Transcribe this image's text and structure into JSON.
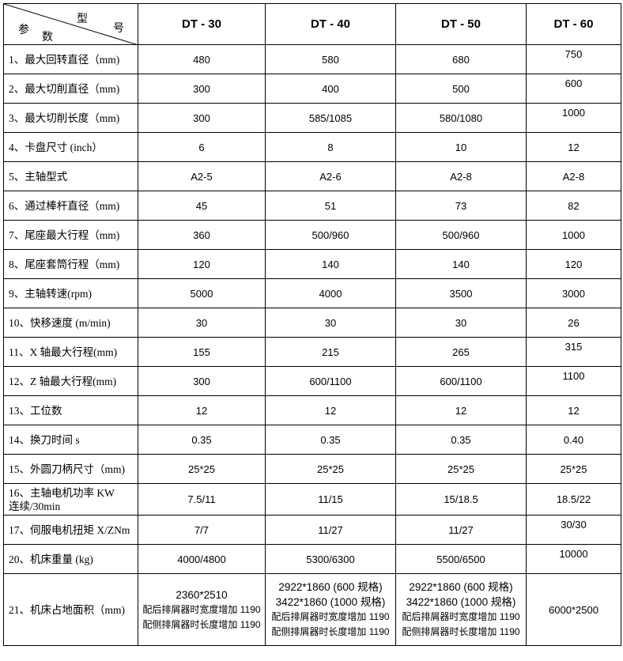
{
  "header": {
    "corner": {
      "xing": "型",
      "hao": "号",
      "can": "参",
      "shu": "数"
    },
    "models": [
      "DT - 30",
      "DT - 40",
      "DT - 50",
      "DT - 60"
    ]
  },
  "rows": [
    {
      "label": "1、最大回转直径（mm)",
      "values": [
        "480",
        "580",
        "680",
        "750"
      ],
      "top4": true
    },
    {
      "label": "2、最大切削直径（mm)",
      "values": [
        "300",
        "400",
        "500",
        "600"
      ],
      "top4": true
    },
    {
      "label": "3、最大切削长度（mm)",
      "values": [
        "300",
        "585/1085",
        "580/1080",
        "1000"
      ],
      "top4": true
    },
    {
      "label": "4、卡盘尺寸 (inch）",
      "values": [
        "6",
        "8",
        "10",
        "12"
      ]
    },
    {
      "label": "5、主轴型式",
      "values": [
        "A2-5",
        "A2-6",
        "A2-8",
        "A2-8"
      ]
    },
    {
      "label": "6、通过棒杆直径（mm)",
      "values": [
        "45",
        "51",
        "73",
        "82"
      ]
    },
    {
      "label": "7、尾座最大行程（mm)",
      "values": [
        "360",
        "500/960",
        "500/960",
        "1000"
      ]
    },
    {
      "label": "8、尾座套筒行程（mm)",
      "values": [
        "120",
        "140",
        "140",
        "120"
      ]
    },
    {
      "label": "9、主轴转速(rpm)",
      "values": [
        "5000",
        "4000",
        "3500",
        "3000"
      ]
    },
    {
      "label": "10、快移速度 (m/min)",
      "values": [
        "30",
        "30",
        "30",
        "26"
      ]
    },
    {
      "label": "11、X 轴最大行程(mm)",
      "values": [
        "155",
        "215",
        "265",
        "315"
      ],
      "top4": true
    },
    {
      "label": "12、Z 轴最大行程(mm)",
      "values": [
        "300",
        "600/1100",
        "600/1100",
        "1100"
      ],
      "top4": true
    },
    {
      "label": "13、工位数",
      "values": [
        "12",
        "12",
        "12",
        "12"
      ]
    },
    {
      "label": "14、换刀时间 s",
      "values": [
        "0.35",
        "0.35",
        "0.35",
        "0.40"
      ]
    },
    {
      "label": "15、外圆刀柄尺寸（mm)",
      "values": [
        "25*25",
        "25*25",
        "25*25",
        "25*25"
      ]
    },
    {
      "label": "16、主轴电机功率 KW",
      "label2": "连续/30min",
      "values": [
        "7.5/11",
        "11/15",
        "15/18.5",
        "18.5/22"
      ]
    },
    {
      "label": "17、伺服电机扭矩 X/ZNm",
      "values": [
        "7/7",
        "11/27",
        "11/27",
        "30/30"
      ],
      "top4": true
    },
    {
      "label": "20、机床重量 (kg)",
      "values": [
        "4000/4800",
        "5300/6300",
        "5500/6500",
        "10000"
      ],
      "top4": true
    }
  ],
  "last_row": {
    "label": "21、机床占地面积（mm)",
    "dt30": [
      "2360*2510",
      "配后排屑器时宽度增加 1190",
      "配侧排屑器时长度增加 1190"
    ],
    "dt40": [
      "2922*1860 (600 规格)",
      "3422*1860 (1000 规格)",
      "配后排屑器时宽度增加 1190",
      "配侧排屑器时长度增加 1190"
    ],
    "dt50": [
      "2922*1860 (600 规格)",
      "3422*1860 (1000 规格)",
      "配后排屑器时宽度增加 1190",
      "配侧排屑器时长度增加 1190"
    ],
    "dt60": "6000*2500"
  }
}
